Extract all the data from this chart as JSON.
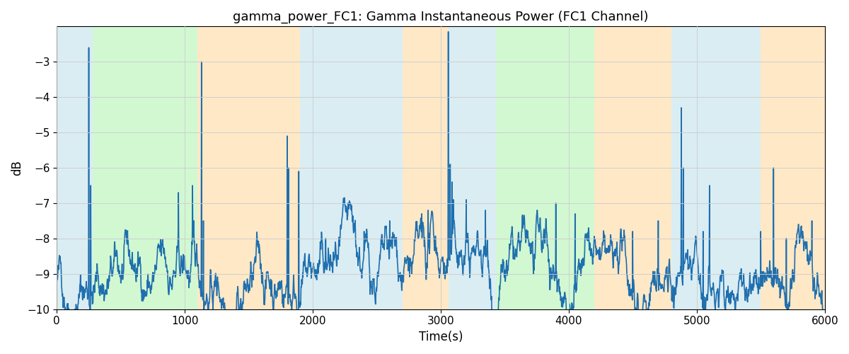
{
  "title": "gamma_power_FC1: Gamma Instantaneous Power (FC1 Channel)",
  "xlabel": "Time(s)",
  "ylabel": "dB",
  "xlim": [
    0,
    6000
  ],
  "ylim": [
    -10,
    -2
  ],
  "yticks": [
    -10,
    -9,
    -8,
    -7,
    -6,
    -5,
    -4,
    -3
  ],
  "xticks": [
    0,
    1000,
    2000,
    3000,
    4000,
    5000,
    6000
  ],
  "bg_regions": [
    {
      "xmin": 0,
      "xmax": 280,
      "color": "#ADD8E6",
      "alpha": 0.45
    },
    {
      "xmin": 280,
      "xmax": 1100,
      "color": "#90EE90",
      "alpha": 0.4
    },
    {
      "xmin": 1100,
      "xmax": 1900,
      "color": "#FFDAA0",
      "alpha": 0.6
    },
    {
      "xmin": 1900,
      "xmax": 2700,
      "color": "#ADD8E6",
      "alpha": 0.45
    },
    {
      "xmin": 2700,
      "xmax": 3060,
      "color": "#FFDAA0",
      "alpha": 0.6
    },
    {
      "xmin": 3060,
      "xmax": 3430,
      "color": "#ADD8E6",
      "alpha": 0.45
    },
    {
      "xmin": 3430,
      "xmax": 4200,
      "color": "#90EE90",
      "alpha": 0.4
    },
    {
      "xmin": 4200,
      "xmax": 4800,
      "color": "#FFDAA0",
      "alpha": 0.6
    },
    {
      "xmin": 4800,
      "xmax": 5500,
      "color": "#ADD8E6",
      "alpha": 0.45
    },
    {
      "xmin": 5500,
      "xmax": 6000,
      "color": "#FFDAA0",
      "alpha": 0.6
    }
  ],
  "line_color": "#1F6FAE",
  "line_width": 1.2,
  "title_fontsize": 13,
  "label_fontsize": 12,
  "tick_fontsize": 11,
  "seed": 42
}
